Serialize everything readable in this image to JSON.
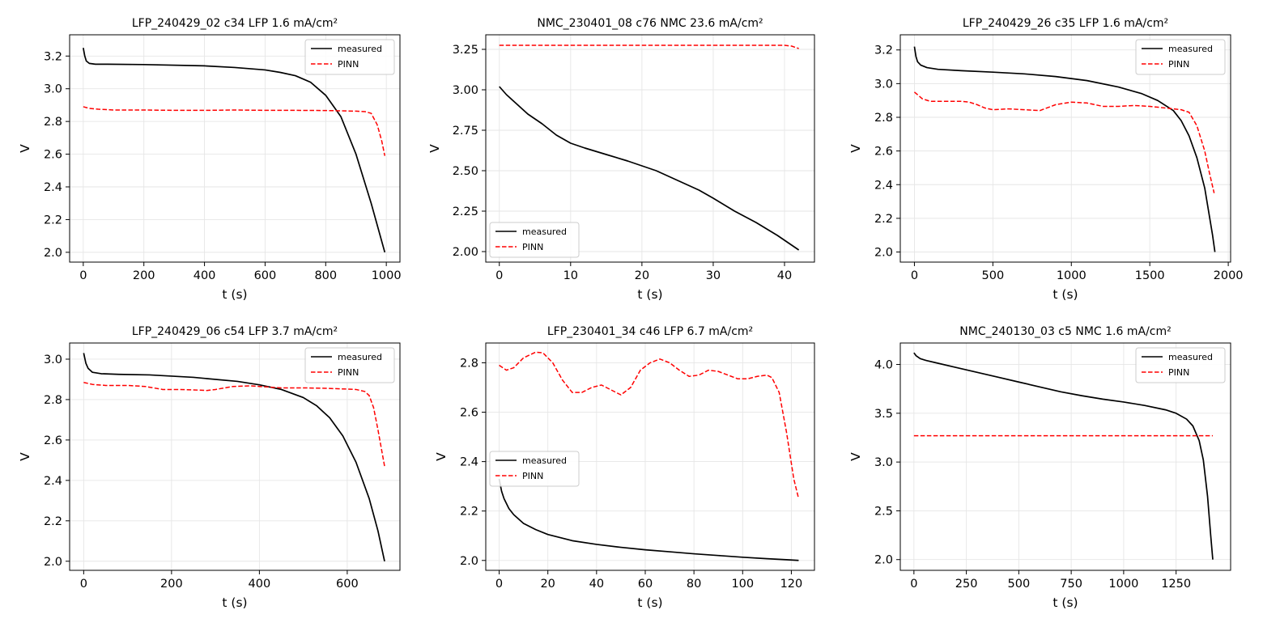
{
  "colors": {
    "measured": "#000000",
    "pinn": "#ff0000",
    "grid": "#e6e6e6",
    "frame": "#000000"
  },
  "chart_data": [
    {
      "type": "line",
      "title": "LFP_240429_02 c34  LFP  1.6 mA/cm²",
      "xlabel": "t (s)",
      "ylabel": "V",
      "xlim": [
        -45,
        1045
      ],
      "ylim": [
        1.94,
        3.33
      ],
      "xticks": [
        0,
        200,
        400,
        600,
        800,
        1000
      ],
      "xtick_labels": [
        "0",
        "200",
        "400",
        "600",
        "800",
        "1000"
      ],
      "yticks": [
        2.0,
        2.2,
        2.4,
        2.6,
        2.8,
        3.0,
        3.2
      ],
      "ytick_labels": [
        "2.0",
        "2.2",
        "2.4",
        "2.6",
        "2.8",
        "3.0",
        "3.2"
      ],
      "grid": true,
      "legend": "top-right",
      "series": [
        {
          "name": "measured",
          "style": "solid",
          "color": "#000000",
          "x": [
            0,
            5,
            10,
            20,
            40,
            80,
            200,
            400,
            500,
            600,
            650,
            700,
            750,
            800,
            850,
            900,
            950,
            995
          ],
          "y": [
            3.25,
            3.2,
            3.17,
            3.155,
            3.15,
            3.15,
            3.148,
            3.14,
            3.13,
            3.115,
            3.1,
            3.08,
            3.04,
            2.96,
            2.83,
            2.6,
            2.3,
            2.0
          ]
        },
        {
          "name": "PINN",
          "style": "dashed",
          "color": "#ff0000",
          "x": [
            0,
            20,
            50,
            100,
            200,
            300,
            400,
            500,
            600,
            700,
            800,
            850,
            900,
            930,
            950,
            970,
            985,
            995
          ],
          "y": [
            2.89,
            2.88,
            2.875,
            2.87,
            2.87,
            2.868,
            2.868,
            2.87,
            2.868,
            2.868,
            2.867,
            2.865,
            2.863,
            2.86,
            2.85,
            2.78,
            2.68,
            2.59
          ]
        }
      ]
    },
    {
      "type": "line",
      "title": "NMC_230401_08 c76  NMC  23.6 mA/cm²",
      "xlabel": "t (s)",
      "ylabel": "V",
      "xlim": [
        -1.9,
        44.2
      ],
      "ylim": [
        1.935,
        3.34
      ],
      "xticks": [
        0,
        10,
        20,
        30,
        40
      ],
      "xtick_labels": [
        "0",
        "10",
        "20",
        "30",
        "40"
      ],
      "yticks": [
        2.0,
        2.25,
        2.5,
        2.75,
        3.0,
        3.25
      ],
      "ytick_labels": [
        "2.00",
        "2.25",
        "2.50",
        "2.75",
        "3.00",
        "3.25"
      ],
      "grid": true,
      "legend": "lower-left",
      "series": [
        {
          "name": "measured",
          "style": "solid",
          "color": "#000000",
          "x": [
            0,
            1,
            2,
            4,
            6,
            8,
            10,
            12,
            15,
            18,
            20,
            22,
            25,
            28,
            30,
            33,
            36,
            39,
            42
          ],
          "y": [
            3.02,
            2.97,
            2.93,
            2.85,
            2.79,
            2.72,
            2.67,
            2.64,
            2.6,
            2.56,
            2.53,
            2.5,
            2.44,
            2.38,
            2.33,
            2.25,
            2.18,
            2.1,
            2.01
          ]
        },
        {
          "name": "PINN",
          "style": "dashed",
          "color": "#ff0000",
          "x": [
            0,
            10,
            20,
            30,
            40,
            41,
            42
          ],
          "y": [
            3.275,
            3.275,
            3.275,
            3.275,
            3.275,
            3.27,
            3.255
          ]
        }
      ]
    },
    {
      "type": "line",
      "title": "LFP_240429_26 c35  LFP  1.6 mA/cm²",
      "xlabel": "t (s)",
      "ylabel": "V",
      "xlim": [
        -90,
        2015
      ],
      "ylim": [
        1.94,
        3.29
      ],
      "xticks": [
        0,
        500,
        1000,
        1500,
        2000
      ],
      "xtick_labels": [
        "0",
        "500",
        "1000",
        "1500",
        "2000"
      ],
      "yticks": [
        2.0,
        2.2,
        2.4,
        2.6,
        2.8,
        3.0,
        3.2
      ],
      "ytick_labels": [
        "2.0",
        "2.2",
        "2.4",
        "2.6",
        "2.8",
        "3.0",
        "3.2"
      ],
      "grid": true,
      "legend": "top-right",
      "series": [
        {
          "name": "measured",
          "style": "solid",
          "color": "#000000",
          "x": [
            0,
            10,
            20,
            40,
            80,
            150,
            300,
            500,
            700,
            900,
            1100,
            1300,
            1450,
            1550,
            1650,
            1700,
            1750,
            1800,
            1850,
            1900,
            1915
          ],
          "y": [
            3.22,
            3.16,
            3.13,
            3.11,
            3.095,
            3.085,
            3.077,
            3.068,
            3.058,
            3.042,
            3.018,
            2.98,
            2.94,
            2.9,
            2.84,
            2.78,
            2.69,
            2.56,
            2.38,
            2.1,
            2.0
          ]
        },
        {
          "name": "PINN",
          "style": "dashed",
          "color": "#ff0000",
          "x": [
            0,
            50,
            100,
            200,
            300,
            350,
            400,
            450,
            500,
            600,
            700,
            800,
            900,
            1000,
            1100,
            1200,
            1300,
            1400,
            1500,
            1600,
            1700,
            1750,
            1800,
            1850,
            1880,
            1910
          ],
          "y": [
            2.95,
            2.91,
            2.895,
            2.895,
            2.895,
            2.89,
            2.875,
            2.855,
            2.845,
            2.85,
            2.845,
            2.84,
            2.875,
            2.89,
            2.885,
            2.865,
            2.865,
            2.87,
            2.865,
            2.855,
            2.845,
            2.83,
            2.75,
            2.6,
            2.47,
            2.35
          ]
        }
      ]
    },
    {
      "type": "line",
      "title": "LFP_240429_06 c54  LFP  3.7 mA/cm²",
      "xlabel": "t (s)",
      "ylabel": "V",
      "xlim": [
        -32,
        720
      ],
      "ylim": [
        1.955,
        3.08
      ],
      "xticks": [
        0,
        200,
        400,
        600
      ],
      "xtick_labels": [
        "0",
        "200",
        "400",
        "600"
      ],
      "yticks": [
        2.0,
        2.2,
        2.4,
        2.6,
        2.8,
        3.0
      ],
      "ytick_labels": [
        "2.0",
        "2.2",
        "2.4",
        "2.6",
        "2.8",
        "3.0"
      ],
      "grid": true,
      "legend": "top-right",
      "series": [
        {
          "name": "measured",
          "style": "solid",
          "color": "#000000",
          "x": [
            0,
            5,
            10,
            20,
            40,
            80,
            150,
            250,
            350,
            400,
            450,
            500,
            530,
            560,
            590,
            620,
            650,
            670,
            685
          ],
          "y": [
            3.03,
            2.98,
            2.955,
            2.935,
            2.928,
            2.925,
            2.922,
            2.91,
            2.89,
            2.873,
            2.85,
            2.81,
            2.77,
            2.71,
            2.62,
            2.49,
            2.31,
            2.15,
            2.0
          ]
        },
        {
          "name": "PINN",
          "style": "dashed",
          "color": "#ff0000",
          "x": [
            0,
            20,
            50,
            100,
            140,
            180,
            220,
            250,
            280,
            300,
            340,
            380,
            400,
            450,
            500,
            550,
            600,
            620,
            640,
            650,
            660,
            670,
            680,
            685
          ],
          "y": [
            2.885,
            2.875,
            2.87,
            2.87,
            2.865,
            2.85,
            2.85,
            2.848,
            2.845,
            2.85,
            2.865,
            2.868,
            2.865,
            2.858,
            2.858,
            2.856,
            2.852,
            2.85,
            2.84,
            2.82,
            2.76,
            2.65,
            2.53,
            2.47
          ]
        }
      ]
    },
    {
      "type": "line",
      "title": "LFP_230401_34 c46  LFP  6.7 mA/cm²",
      "xlabel": "t (s)",
      "ylabel": "V",
      "xlim": [
        -5.5,
        129.5
      ],
      "ylim": [
        1.96,
        2.88
      ],
      "xticks": [
        0,
        20,
        40,
        60,
        80,
        100,
        120
      ],
      "xtick_labels": [
        "0",
        "20",
        "40",
        "60",
        "80",
        "100",
        "120"
      ],
      "yticks": [
        2.0,
        2.2,
        2.4,
        2.6,
        2.8
      ],
      "ytick_labels": [
        "2.0",
        "2.2",
        "2.4",
        "2.6",
        "2.8"
      ],
      "grid": true,
      "legend": "center-left",
      "series": [
        {
          "name": "measured",
          "style": "solid",
          "color": "#000000",
          "x": [
            0,
            1,
            2,
            4,
            6,
            10,
            15,
            20,
            30,
            40,
            50,
            60,
            70,
            80,
            90,
            100,
            110,
            118,
            123
          ],
          "y": [
            2.33,
            2.28,
            2.25,
            2.21,
            2.185,
            2.15,
            2.125,
            2.105,
            2.08,
            2.065,
            2.053,
            2.043,
            2.035,
            2.027,
            2.02,
            2.013,
            2.007,
            2.003,
            2.0
          ]
        },
        {
          "name": "PINN",
          "style": "dashed",
          "color": "#ff0000",
          "x": [
            0,
            3,
            6,
            10,
            15,
            18,
            22,
            26,
            30,
            34,
            38,
            42,
            46,
            50,
            54,
            58,
            62,
            66,
            70,
            74,
            78,
            82,
            86,
            90,
            94,
            98,
            102,
            106,
            110,
            112,
            115,
            118,
            121,
            123
          ],
          "y": [
            2.79,
            2.77,
            2.78,
            2.82,
            2.843,
            2.84,
            2.8,
            2.73,
            2.68,
            2.68,
            2.7,
            2.71,
            2.69,
            2.67,
            2.7,
            2.77,
            2.8,
            2.815,
            2.8,
            2.77,
            2.745,
            2.75,
            2.77,
            2.765,
            2.75,
            2.735,
            2.735,
            2.745,
            2.75,
            2.74,
            2.68,
            2.52,
            2.33,
            2.25
          ]
        }
      ]
    },
    {
      "type": "line",
      "title": "NMC_240130_03 c5  NMC  1.6 mA/cm²",
      "xlabel": "t (s)",
      "ylabel": "V",
      "xlim": [
        -65,
        1510
      ],
      "ylim": [
        1.89,
        4.22
      ],
      "xticks": [
        0,
        250,
        500,
        750,
        1000,
        1250
      ],
      "xtick_labels": [
        "0",
        "250",
        "500",
        "750",
        "1000",
        "1250"
      ],
      "yticks": [
        2.0,
        2.5,
        3.0,
        3.5,
        4.0
      ],
      "ytick_labels": [
        "2.0",
        "2.5",
        "3.0",
        "3.5",
        "4.0"
      ],
      "grid": true,
      "legend": "top-right",
      "series": [
        {
          "name": "measured",
          "style": "solid",
          "color": "#000000",
          "x": [
            0,
            10,
            30,
            60,
            100,
            200,
            300,
            400,
            500,
            600,
            700,
            800,
            900,
            1000,
            1100,
            1200,
            1250,
            1300,
            1330,
            1360,
            1380,
            1400,
            1415,
            1425
          ],
          "y": [
            4.12,
            4.09,
            4.06,
            4.04,
            4.02,
            3.97,
            3.92,
            3.87,
            3.82,
            3.77,
            3.72,
            3.68,
            3.645,
            3.615,
            3.58,
            3.535,
            3.5,
            3.44,
            3.37,
            3.22,
            3.02,
            2.65,
            2.25,
            2.0
          ]
        },
        {
          "name": "PINN",
          "style": "dashed",
          "color": "#ff0000",
          "x": [
            0,
            500,
            1000,
            1425
          ],
          "y": [
            3.27,
            3.27,
            3.27,
            3.27
          ]
        }
      ]
    }
  ]
}
